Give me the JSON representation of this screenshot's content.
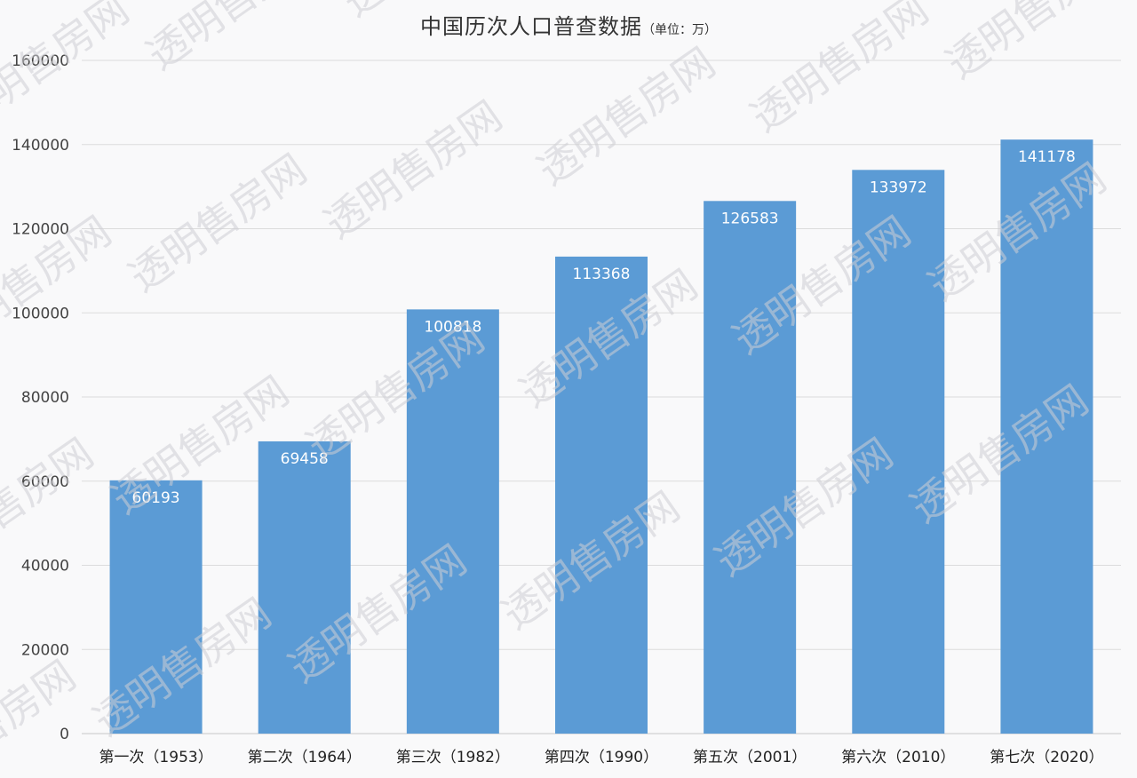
{
  "chart_data": {
    "type": "bar",
    "title": "中国历次人口普查数据",
    "subtitle": "（单位：万）",
    "xlabel": "",
    "ylabel": "",
    "ylim": [
      0,
      160000
    ],
    "yticks": [
      0,
      20000,
      40000,
      60000,
      80000,
      100000,
      120000,
      140000,
      160000
    ],
    "categories": [
      "第一次（1953）",
      "第二次（1964）",
      "第三次（1982）",
      "第四次（1990）",
      "第五次（2001）",
      "第六次（2010）",
      "第七次（2020）"
    ],
    "values": [
      60193,
      69458,
      100818,
      113368,
      126583,
      133972,
      141178
    ],
    "data_labels": true,
    "grid": true,
    "legend": "none",
    "bar_color": "#5b9bd5"
  },
  "watermark": "透明售房网"
}
